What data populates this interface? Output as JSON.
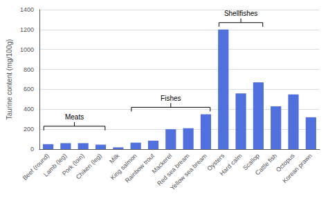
{
  "chart_data": {
    "type": "bar",
    "ylabel": "Taurine content (mg/100g)",
    "categories": [
      "Beef (round)",
      "Lamb (leg)",
      "Pork (loin)",
      "Chiken (leg)",
      "Milk",
      "King salmon",
      "Rainbow trout",
      "Mackerel",
      "Red sea bream",
      "Yellow sea bream",
      "Oysters",
      "Hard calm",
      "Scallop",
      "Cattle fish",
      "Octopus",
      "Korean prawn"
    ],
    "values": [
      50,
      60,
      60,
      45,
      18,
      65,
      85,
      200,
      210,
      350,
      1200,
      560,
      670,
      430,
      550,
      320
    ],
    "ylim": [
      0,
      1400
    ],
    "yticks": [
      0,
      200,
      400,
      600,
      800,
      1000,
      1200,
      1400
    ],
    "grid": true,
    "annotations": [
      {
        "text": "Meats",
        "from": "Beef (round)",
        "to": "Chiken (leg)",
        "y": 230
      },
      {
        "text": "Fishes",
        "from": "King salmon",
        "to": "Yellow sea bream",
        "y": 420
      },
      {
        "text": "Shellfishes",
        "from": "Oysters",
        "to": "Scallop",
        "y": 1270
      }
    ]
  }
}
